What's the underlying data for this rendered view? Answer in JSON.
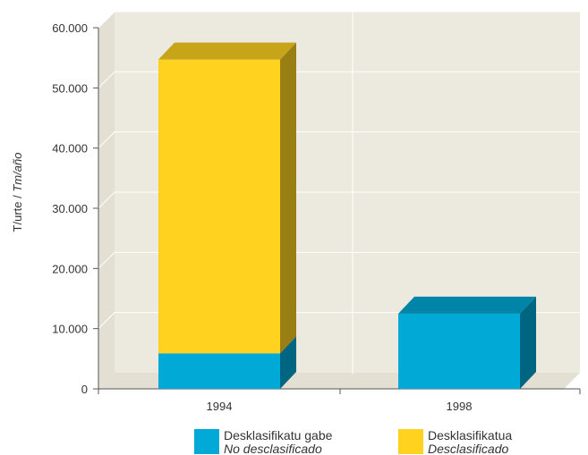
{
  "chart_data": {
    "type": "bar",
    "stacked": true,
    "three_d": true,
    "categories": [
      "1994",
      "1998"
    ],
    "series": [
      {
        "name": "Desklasifikatu gabe",
        "name_es": "No desclasificado",
        "color": "#00A9D6",
        "values": [
          5900,
          12500
        ]
      },
      {
        "name": "Desklasifikatua",
        "name_es": "Desclasificado",
        "color": "#FFD21F",
        "values": [
          48800,
          0
        ]
      }
    ],
    "ylabel": "T/urte / ",
    "ylabel_es": "Tm/año",
    "ylim": [
      0,
      60000
    ],
    "yticks": [
      "0",
      "10.000",
      "20.000",
      "30.000",
      "40.000",
      "50.000",
      "60.000"
    ],
    "grid": true,
    "legend_position": "bottom",
    "colors": {
      "wall": "#ECE9DE",
      "floor": "#E3E0D3",
      "grid": "#FFFFFF",
      "axis": "#555555"
    }
  }
}
